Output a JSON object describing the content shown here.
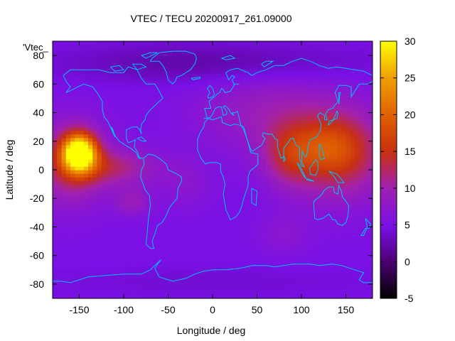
{
  "chart_data": {
    "type": "heatmap",
    "title": "VTEC / TECU 20200917_261.09000",
    "xlabel": "Longitude / deg",
    "ylabel": "Latitude / deg",
    "xlim": [
      -180,
      180
    ],
    "ylim": [
      -90,
      90
    ],
    "x_ticks": [
      -150,
      -100,
      -50,
      0,
      50,
      100,
      150
    ],
    "y_ticks": [
      -80,
      -60,
      -40,
      -20,
      0,
      20,
      40,
      60,
      80
    ],
    "colorbar": {
      "range": [
        -5,
        30
      ],
      "ticks": [
        -5,
        0,
        5,
        10,
        15,
        20,
        25,
        30
      ],
      "palette": "black-purple-red-orange-yellow"
    },
    "series_label": "'Vtec_",
    "grid": false,
    "z_background": 5,
    "coastline_color": "#00c0ff",
    "features": [
      {
        "lon": -150,
        "lat": 12,
        "value": 27,
        "sigma_lon": 13,
        "sigma_lat": 9
      },
      {
        "lon": -160,
        "lat": 5,
        "value": 8,
        "sigma_lon": 28,
        "sigma_lat": 20
      },
      {
        "lon": -110,
        "lat": 2,
        "value": 6,
        "sigma_lon": 35,
        "sigma_lat": 9
      },
      {
        "lon": -90,
        "lat": -22,
        "value": 4,
        "sigma_lon": 14,
        "sigma_lat": 7
      },
      {
        "lon": 140,
        "lat": 12,
        "value": 10,
        "sigma_lon": 38,
        "sigma_lat": 22
      },
      {
        "lon": 130,
        "lat": 16,
        "value": 4,
        "sigma_lon": 25,
        "sigma_lat": 12
      },
      {
        "lon": 85,
        "lat": 10,
        "value": 6,
        "sigma_lon": 20,
        "sigma_lat": 15
      },
      {
        "lon": 60,
        "lat": 40,
        "value": 4,
        "sigma_lon": 55,
        "sigma_lat": 20
      },
      {
        "lon": -30,
        "lat": -10,
        "value": 2,
        "sigma_lon": 20,
        "sigma_lat": 12
      },
      {
        "lon": 80,
        "lat": -45,
        "value": 2,
        "sigma_lon": 20,
        "sigma_lat": 10
      },
      {
        "lon": 0,
        "lat": 75,
        "value": -3,
        "sigma_lon": 120,
        "sigma_lat": 10
      },
      {
        "lon": 0,
        "lat": -78,
        "value": -1,
        "sigma_lon": 150,
        "sigma_lat": 8
      }
    ]
  }
}
